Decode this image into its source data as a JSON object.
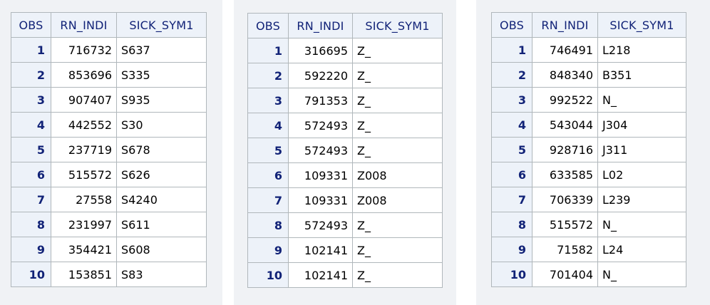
{
  "headers": {
    "obs": "OBS",
    "rn_indi": "RN_INDI",
    "sick_sym1": "SICK_SYM1"
  },
  "tables": [
    {
      "rows": [
        {
          "obs": "1",
          "rn_indi": "716732",
          "sick_sym1": "S637"
        },
        {
          "obs": "2",
          "rn_indi": "853696",
          "sick_sym1": "S335"
        },
        {
          "obs": "3",
          "rn_indi": "907407",
          "sick_sym1": "S935"
        },
        {
          "obs": "4",
          "rn_indi": "442552",
          "sick_sym1": "S30"
        },
        {
          "obs": "5",
          "rn_indi": "237719",
          "sick_sym1": "S678"
        },
        {
          "obs": "6",
          "rn_indi": "515572",
          "sick_sym1": "S626"
        },
        {
          "obs": "7",
          "rn_indi": "27558",
          "sick_sym1": "S4240"
        },
        {
          "obs": "8",
          "rn_indi": "231997",
          "sick_sym1": "S611"
        },
        {
          "obs": "9",
          "rn_indi": "354421",
          "sick_sym1": "S608"
        },
        {
          "obs": "10",
          "rn_indi": "153851",
          "sick_sym1": "S83"
        }
      ]
    },
    {
      "rows": [
        {
          "obs": "1",
          "rn_indi": "316695",
          "sick_sym1": "Z_"
        },
        {
          "obs": "2",
          "rn_indi": "592220",
          "sick_sym1": "Z_"
        },
        {
          "obs": "3",
          "rn_indi": "791353",
          "sick_sym1": "Z_"
        },
        {
          "obs": "4",
          "rn_indi": "572493",
          "sick_sym1": "Z_"
        },
        {
          "obs": "5",
          "rn_indi": "572493",
          "sick_sym1": "Z_"
        },
        {
          "obs": "6",
          "rn_indi": "109331",
          "sick_sym1": "Z008"
        },
        {
          "obs": "7",
          "rn_indi": "109331",
          "sick_sym1": "Z008"
        },
        {
          "obs": "8",
          "rn_indi": "572493",
          "sick_sym1": "Z_"
        },
        {
          "obs": "9",
          "rn_indi": "102141",
          "sick_sym1": "Z_"
        },
        {
          "obs": "10",
          "rn_indi": "102141",
          "sick_sym1": "Z_"
        }
      ]
    },
    {
      "rows": [
        {
          "obs": "1",
          "rn_indi": "746491",
          "sick_sym1": "L218"
        },
        {
          "obs": "2",
          "rn_indi": "848340",
          "sick_sym1": "B351"
        },
        {
          "obs": "3",
          "rn_indi": "992522",
          "sick_sym1": "N_"
        },
        {
          "obs": "4",
          "rn_indi": "543044",
          "sick_sym1": "J304"
        },
        {
          "obs": "5",
          "rn_indi": "928716",
          "sick_sym1": "J311"
        },
        {
          "obs": "6",
          "rn_indi": "633585",
          "sick_sym1": "L02"
        },
        {
          "obs": "7",
          "rn_indi": "706339",
          "sick_sym1": "L239"
        },
        {
          "obs": "8",
          "rn_indi": "515572",
          "sick_sym1": "N_"
        },
        {
          "obs": "9",
          "rn_indi": "71582",
          "sick_sym1": "L24"
        },
        {
          "obs": "10",
          "rn_indi": "701404",
          "sick_sym1": "N_"
        }
      ]
    }
  ]
}
